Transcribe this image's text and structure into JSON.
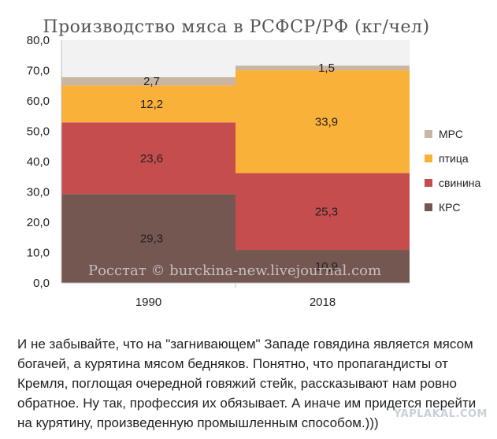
{
  "chart_data": {
    "type": "bar",
    "stacked": true,
    "title": "Производство мяса в РСФСР/РФ (кг/чел)",
    "categories": [
      "1990",
      "2018"
    ],
    "series": [
      {
        "name": "КРС",
        "values": [
          29.3,
          10.9
        ],
        "labels": [
          "29,3",
          "10,9"
        ],
        "color": "#745751"
      },
      {
        "name": "свинина",
        "values": [
          23.6,
          25.3
        ],
        "labels": [
          "23,6",
          "25,3"
        ],
        "color": "#c64d4d"
      },
      {
        "name": "птица",
        "values": [
          12.2,
          33.9
        ],
        "labels": [
          "12,2",
          "33,9"
        ],
        "color": "#f9b13a"
      },
      {
        "name": "МРС",
        "values": [
          2.7,
          1.5
        ],
        "labels": [
          "2,7",
          "1,5"
        ],
        "color": "#c8b6a2"
      }
    ],
    "ylim": [
      0,
      80
    ],
    "yticks": [
      0,
      10,
      20,
      30,
      40,
      50,
      60,
      70,
      80
    ],
    "ytick_labels": [
      "0,0",
      "10,0",
      "20,0",
      "30,0",
      "40,0",
      "50,0",
      "60,0",
      "70,0",
      "80,0"
    ],
    "legend_position": "right",
    "grid": false,
    "watermark": "Росстат © burckina-new.livejournal.com"
  },
  "caption": "И не забывайте, что на \"загнивающем\" Западе говядина является мясом богачей, а курятина мясом бедняков. Понятно, что пропагандисты от Кремля, поглощая очередной говяжий стейк, рассказывают нам ровно обратное. Ну так, профессия их обязывает. А иначе им придется перейти на курятину, произведенную промышленным способом.)))",
  "site_badge": "YAPLAKAL.COM",
  "colors": {
    "plot_background": "#f2f2f2",
    "axis": "#bfbfbf"
  }
}
